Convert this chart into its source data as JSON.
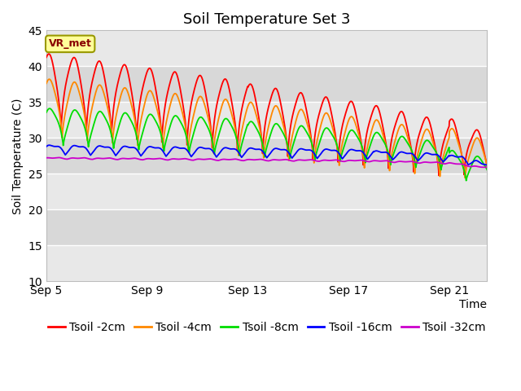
{
  "title": "Soil Temperature Set 3",
  "xlabel": "Time",
  "ylabel": "Soil Temperature (C)",
  "ylim": [
    10,
    45
  ],
  "yticks": [
    10,
    15,
    20,
    25,
    30,
    35,
    40,
    45
  ],
  "xlim_days": [
    0,
    17.5
  ],
  "x_tick_labels": [
    "Sep 5",
    "Sep 9",
    "Sep 13",
    "Sep 17",
    "Sep 21"
  ],
  "x_tick_positions": [
    0,
    4,
    8,
    12,
    16
  ],
  "colors": {
    "Tsoil -2cm": "#ff0000",
    "Tsoil -4cm": "#ff8800",
    "Tsoil -8cm": "#00dd00",
    "Tsoil -16cm": "#0000ff",
    "Tsoil -32cm": "#cc00cc"
  },
  "vr_met_box_color": "#ffff99",
  "vr_met_border_color": "#999900",
  "vr_met_text_color": "#880000",
  "background_color": "#ffffff",
  "plot_bg_color": "#e8e8e8",
  "grid_color": "#ffffff",
  "title_fontsize": 13,
  "axis_label_fontsize": 10,
  "tick_fontsize": 10,
  "legend_fontsize": 10,
  "band_colors": [
    "#e8e8e8",
    "#d8d8d8"
  ],
  "band_boundaries": [
    10,
    15,
    20,
    25,
    30,
    35,
    40,
    45
  ]
}
